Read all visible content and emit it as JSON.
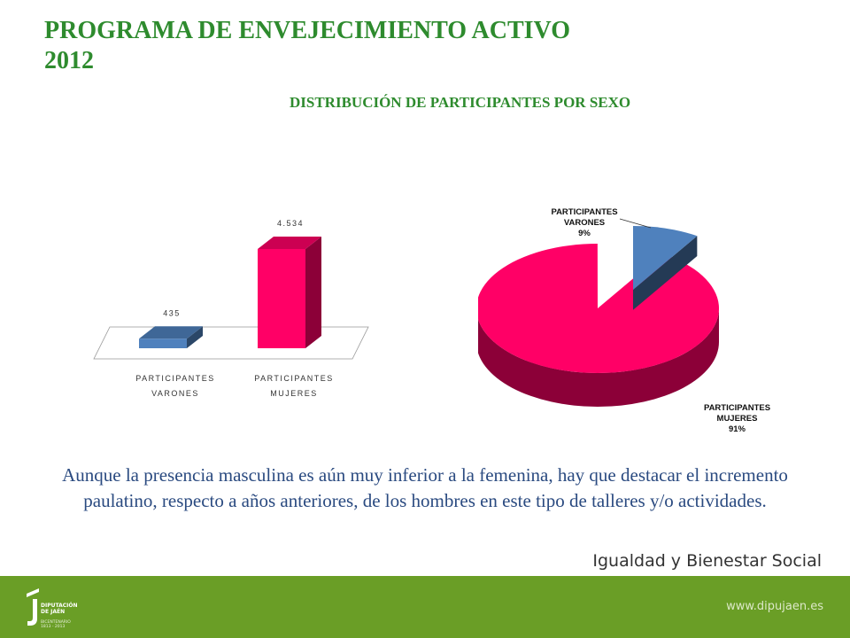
{
  "header": {
    "title_line1": "PROGRAMA DE ENVEJECIMIENTO ACTIVO",
    "title_line2": "2012",
    "subtitle": "DISTRIBUCIÓN DE PARTICIPANTES POR SEXO"
  },
  "chart_data": [
    {
      "type": "bar",
      "categories": [
        "PARTICIPANTES VARONES",
        "PARTICIPANTES MUJERES"
      ],
      "category_lines": [
        [
          "PARTICIPANTES",
          "VARONES"
        ],
        [
          "PARTICIPANTES",
          "MUJERES"
        ]
      ],
      "values": [
        435,
        4534
      ],
      "data_labels": [
        "435",
        "4.534"
      ],
      "colors": [
        "#4f81bd",
        "#ff0066"
      ],
      "ylim": [
        0,
        4534
      ]
    },
    {
      "type": "pie",
      "slices": [
        {
          "label_lines": [
            "PARTICIPANTES",
            "VARONES",
            "9%"
          ],
          "value": 9,
          "color": "#4f81bd"
        },
        {
          "label_lines": [
            "PARTICIPANTES",
            "MUJERES",
            "91%"
          ],
          "value": 91,
          "color": "#ff0066"
        }
      ]
    }
  ],
  "caption": "Aunque la presencia masculina es aún muy inferior a la femenina, hay que destacar el incremento paulatino, respecto a años anteriores, de los hombres en este tipo de talleres y/o actividades.",
  "footer": {
    "section": "Igualdad y Bienestar Social",
    "url": "www.dipujaen.es",
    "logo_line1": "DIPUTACIÓN",
    "logo_line2": "DE JAÉN",
    "logo_sub1": "BICENTENARIO",
    "logo_sub2": "1813 - 2013"
  },
  "colors": {
    "accent": "#2e8b2e",
    "footer": "#6a9e26",
    "caption": "#2a4a80"
  }
}
